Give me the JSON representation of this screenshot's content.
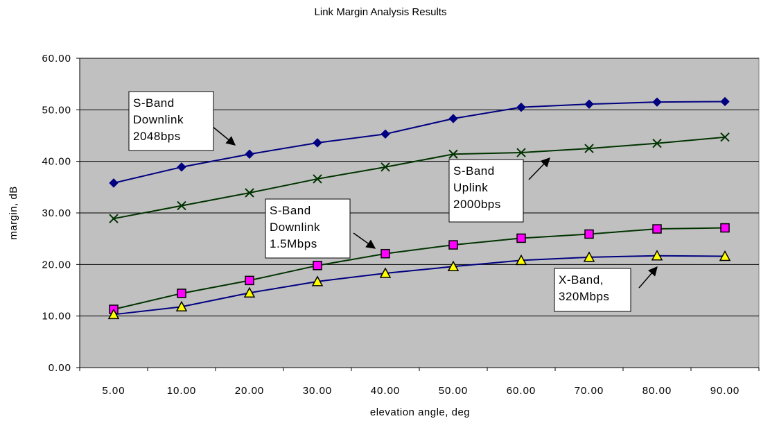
{
  "chart_data": {
    "type": "line",
    "title": "Link Margin Analysis Results",
    "xlabel": "elevation angle, deg",
    "ylabel": "margin, dB",
    "categories": [
      "5.00",
      "10.00",
      "20.00",
      "30.00",
      "40.00",
      "50.00",
      "60.00",
      "70.00",
      "80.00",
      "90.00"
    ],
    "yticks": [
      "0.00",
      "10.00",
      "20.00",
      "30.00",
      "40.00",
      "50.00",
      "60.00"
    ],
    "ylim": [
      0,
      60
    ],
    "grid": "horizontal",
    "plot_background": "#c0c0c0",
    "series": [
      {
        "key": "sband_downlink_2048",
        "marker": "diamond",
        "line_color": "#000080",
        "marker_color": "#000080",
        "values": [
          35.8,
          38.9,
          41.4,
          43.6,
          45.3,
          48.3,
          50.5,
          51.1,
          51.5,
          51.6
        ]
      },
      {
        "key": "sband_uplink_2000",
        "marker": "x",
        "line_color": "#003300",
        "marker_color": "#003300",
        "values": [
          28.9,
          31.4,
          33.9,
          36.6,
          38.9,
          41.4,
          41.7,
          42.5,
          43.5,
          44.7
        ]
      },
      {
        "key": "sband_downlink_1_5m",
        "marker": "square",
        "line_color": "#003300",
        "marker_color": "#ff00ff",
        "values": [
          11.3,
          14.4,
          16.9,
          19.8,
          22.1,
          23.8,
          25.1,
          25.9,
          26.9,
          27.1
        ]
      },
      {
        "key": "xband_320m",
        "marker": "triangle",
        "line_color": "#000080",
        "marker_color": "#ffff00",
        "values": [
          10.3,
          11.8,
          14.5,
          16.7,
          18.3,
          19.6,
          20.8,
          21.4,
          21.7,
          21.6
        ]
      }
    ],
    "annotations": [
      {
        "key": "sband_downlink_2048_label",
        "lines": [
          "S-Band",
          "Downlink",
          "2048bps"
        ]
      },
      {
        "key": "sband_uplink_2000_label",
        "lines": [
          "S-Band",
          "Uplink",
          "2000bps"
        ]
      },
      {
        "key": "sband_downlink_1_5m_label",
        "lines": [
          "S-Band",
          "Downlink",
          "1.5Mbps"
        ]
      },
      {
        "key": "xband_320m_label",
        "lines": [
          "X-Band,",
          "320Mbps"
        ]
      }
    ]
  }
}
